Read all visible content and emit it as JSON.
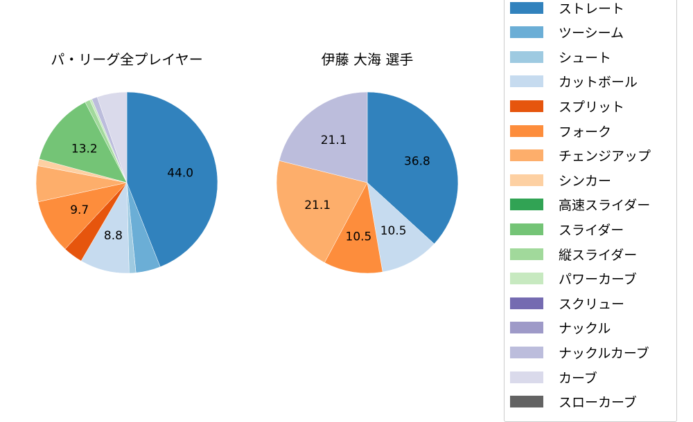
{
  "chart_data": [
    {
      "type": "pie",
      "title": "パ・リーグ全プレイヤー",
      "start_angle": 90,
      "direction": "clockwise",
      "categories": [
        "ストレート",
        "ツーシーム",
        "シュート",
        "カットボール",
        "スプリット",
        "フォーク",
        "チェンジアップ",
        "シンカー",
        "高速スライダー",
        "スライダー",
        "縦スライダー",
        "パワーカーブ",
        "スクリュー",
        "ナックル",
        "ナックルカーブ",
        "カーブ",
        "スローカーブ"
      ],
      "values": [
        44.0,
        4.4,
        1.2,
        8.8,
        3.5,
        9.7,
        6.4,
        1.2,
        0.0,
        13.2,
        0.9,
        0.4,
        0.0,
        0.0,
        1.0,
        5.3,
        0.0
      ],
      "labels_shown": {
        "ストレート": "44.0",
        "カットボール": "8.8",
        "フォーク": "9.7",
        "スライダー": "13.2"
      }
    },
    {
      "type": "pie",
      "title": "伊藤 大海  選手",
      "start_angle": 90,
      "direction": "clockwise",
      "categories": [
        "ストレート",
        "カットボール",
        "フォーク",
        "チェンジアップ",
        "ナックルカーブ"
      ],
      "values": [
        36.8,
        10.5,
        10.5,
        21.1,
        21.1
      ],
      "labels_shown": {
        "ストレート": "36.8",
        "カットボール": "10.5",
        "フォーク": "10.5",
        "チェンジアップ": "21.1",
        "ナックルカーブ": "21.1"
      }
    }
  ],
  "titles": {
    "left": "パ・リーグ全プレイヤー",
    "right": "伊藤 大海  選手"
  },
  "legend": [
    {
      "label": "ストレート",
      "color": "#3182bd"
    },
    {
      "label": "ツーシーム",
      "color": "#6baed6"
    },
    {
      "label": "シュート",
      "color": "#9ecae1"
    },
    {
      "label": "カットボール",
      "color": "#c6dbef"
    },
    {
      "label": "スプリット",
      "color": "#e6550d"
    },
    {
      "label": "フォーク",
      "color": "#fd8d3c"
    },
    {
      "label": "チェンジアップ",
      "color": "#fdae6b"
    },
    {
      "label": "シンカー",
      "color": "#fdd0a2"
    },
    {
      "label": "高速スライダー",
      "color": "#31a354"
    },
    {
      "label": "スライダー",
      "color": "#74c476"
    },
    {
      "label": "縦スライダー",
      "color": "#a1d99b"
    },
    {
      "label": "パワーカーブ",
      "color": "#c7e9c0"
    },
    {
      "label": "スクリュー",
      "color": "#756bb1"
    },
    {
      "label": "ナックル",
      "color": "#9e9ac8"
    },
    {
      "label": "ナックルカーブ",
      "color": "#bcbddc"
    },
    {
      "label": "カーブ",
      "color": "#dadaeb"
    },
    {
      "label": "スローカーブ",
      "color": "#636363"
    }
  ]
}
